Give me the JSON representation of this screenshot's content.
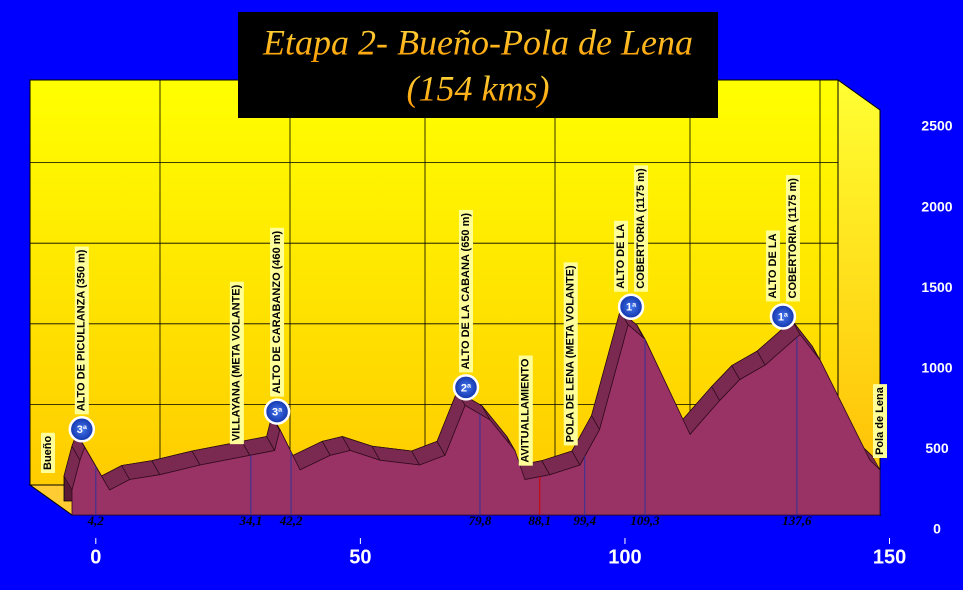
{
  "chart_data": {
    "type": "area",
    "title": [
      "Etapa 2- Bueño-Pola de Lena",
      "(154 kms)"
    ],
    "x": [
      -4.5,
      -3,
      -2.1,
      2.6,
      6.4,
      12.1,
      19.7,
      29.1,
      33.8,
      34.8,
      38.6,
      44.3,
      48.1,
      53.7,
      61.2,
      66,
      69.8,
      74.5,
      79.2,
      81.1,
      85.8,
      91.5,
      95.2,
      100.6,
      103.8,
      112.3,
      117.9,
      121.7,
      126.5,
      133.1,
      136.9,
      141.6,
      146.3,
      148.2
    ],
    "values": [
      155,
      340,
      420,
      155,
      220,
      250,
      310,
      370,
      400,
      530,
      280,
      370,
      400,
      340,
      310,
      370,
      680,
      590,
      400,
      220,
      250,
      310,
      530,
      1180,
      1090,
      500,
      710,
      840,
      930,
      1120,
      960,
      650,
      340,
      280
    ],
    "color": "#993366",
    "xlim": [
      -4.5,
      148.2
    ],
    "xticks": [
      0,
      50,
      100,
      150
    ],
    "ylim": [
      0,
      2500
    ],
    "yticks": [
      0,
      500,
      1000,
      1500,
      2000,
      2500
    ],
    "grid": true,
    "start_label": "Bueño",
    "end_label": "Pola de Lena",
    "annotations": [
      {
        "lines": [
          "ALTO DE PICULLANZA (350 m)"
        ],
        "km": "4,2",
        "x": 0,
        "category": "3ª",
        "line_color": "#333399"
      },
      {
        "lines": [
          "VILLAYANA (META VOLANTE)"
        ],
        "km": "34,1",
        "x": 29.3,
        "line_color": "#333399"
      },
      {
        "lines": [
          "ALTO DE CARABANZO (460 m)"
        ],
        "km": "42,2",
        "x": 36.9,
        "category": "3ª",
        "line_color": "#333399"
      },
      {
        "lines": [
          "ALTO DE LA CABANA (650 m)"
        ],
        "km": "79,8",
        "x": 72.6,
        "category": "2ª",
        "line_color": "#333399"
      },
      {
        "lines": [
          "AVITUALLAMIENTO"
        ],
        "km": "88,1",
        "x": 83.9,
        "line_color": "#cc0000"
      },
      {
        "lines": [
          "POLA DE LENA (META VOLANTE)"
        ],
        "km": "99,4",
        "x": 92.4,
        "line_color": "#333399"
      },
      {
        "lines": [
          "ALTO DE LA",
          "COBERTORIA (1175 m)"
        ],
        "km": "109,3",
        "x": 103.8,
        "category": "1ª",
        "line_color": "#333399"
      },
      {
        "lines": [
          "ALTO DE LA",
          "COBERTORIA (1175 m)"
        ],
        "km": "137,6",
        "x": 132.5,
        "category": "1ª",
        "line_color": "#333399"
      }
    ]
  }
}
